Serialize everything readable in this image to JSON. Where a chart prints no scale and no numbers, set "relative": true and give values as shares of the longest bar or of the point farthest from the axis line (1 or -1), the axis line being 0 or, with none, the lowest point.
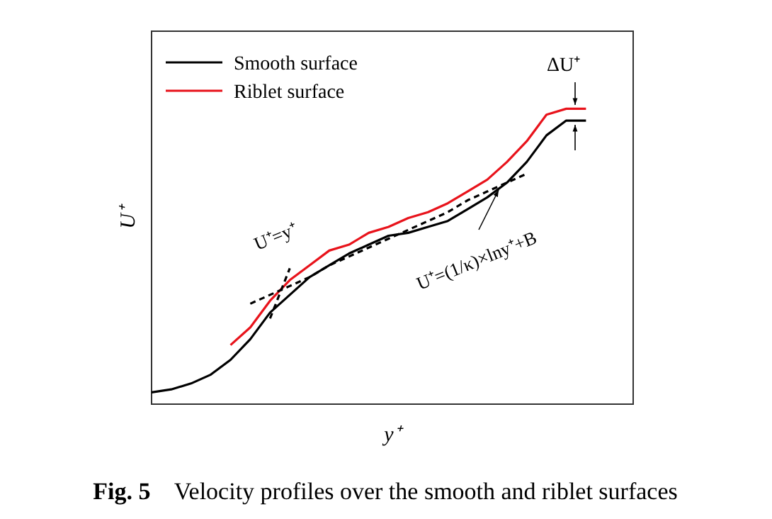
{
  "chart_data": {
    "type": "line",
    "relative": true,
    "title": "Fig. 5    Velocity profiles over the smooth and riblet surfaces",
    "xlabel": "y⁺",
    "ylabel": "U⁺",
    "legend": "top left",
    "categories": [
      null,
      null,
      null,
      null,
      null,
      null,
      null,
      null,
      null,
      null,
      null,
      null,
      null,
      null,
      null,
      null,
      null,
      null,
      null,
      null,
      null,
      null,
      null
    ],
    "series": [
      {
        "name": "Smooth surface",
        "color": "#000000",
        "values": [
          0.04,
          0.05,
          0.07,
          0.1,
          0.15,
          0.22,
          0.31,
          0.37,
          0.43,
          0.47,
          0.51,
          0.54,
          0.57,
          0.58,
          0.6,
          0.62,
          0.66,
          0.7,
          0.75,
          0.82,
          0.91,
          0.96,
          0.96
        ]
      },
      {
        "name": "Riblet surface",
        "color": "#e8131b",
        "values": [
          null,
          null,
          null,
          null,
          0.2,
          0.26,
          0.35,
          0.42,
          0.47,
          0.52,
          0.54,
          0.58,
          0.6,
          0.63,
          0.65,
          0.68,
          0.72,
          0.76,
          0.82,
          0.89,
          0.98,
          1,
          1
        ]
      },
      {
        "color": "#000000",
        "line_style": "dashed",
        "values": [
          null,
          null,
          null,
          null,
          null,
          null,
          0.29,
          0.46,
          null,
          null,
          null,
          null,
          null,
          null,
          null,
          null,
          null,
          null,
          null,
          null,
          null,
          null,
          null
        ]
      },
      {
        "color": "#000000",
        "line_style": "dashed",
        "values": [
          null,
          null,
          null,
          null,
          null,
          0.34,
          0.37,
          0.4,
          0.43,
          0.47,
          0.5,
          0.53,
          0.56,
          0.59,
          0.62,
          0.65,
          0.69,
          0.72,
          0.75,
          0.78,
          null,
          null,
          null
        ]
      }
    ],
    "annotations": [
      "ΔU⁺",
      "U⁺=y⁺",
      "U⁺=(1/κ)×lny⁺+B"
    ]
  }
}
